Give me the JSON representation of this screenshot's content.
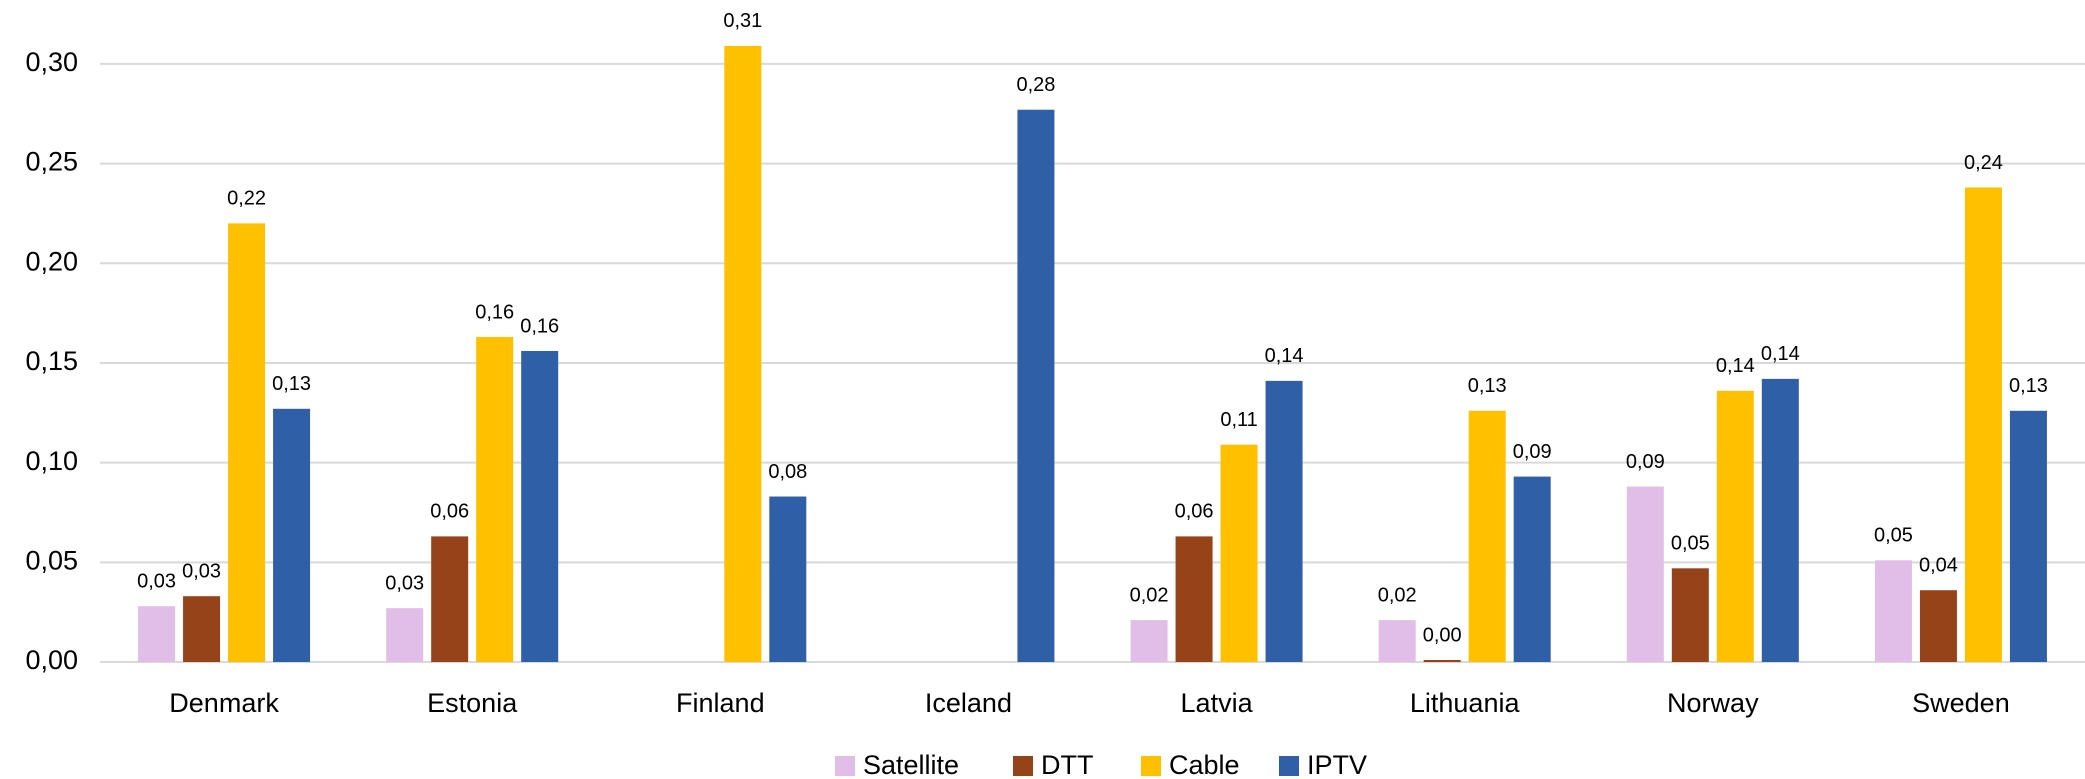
{
  "chart_data": {
    "type": "bar",
    "categories": [
      "Denmark",
      "Estonia",
      "Finland",
      "Iceland",
      "Latvia",
      "Lithuania",
      "Norway",
      "Sweden"
    ],
    "series": [
      {
        "name": "Satellite",
        "color": "#e1bee7",
        "values": [
          0.028,
          0.027,
          null,
          null,
          0.021,
          0.021,
          0.088,
          0.051
        ],
        "value_labels": [
          "0,03",
          "0,03",
          null,
          null,
          "0,02",
          "0,02",
          "0,09",
          "0,05"
        ]
      },
      {
        "name": "DTT",
        "color": "#974319",
        "values": [
          0.033,
          0.063,
          null,
          null,
          0.063,
          0.001,
          0.047,
          0.036
        ],
        "value_labels": [
          "0,03",
          "0,06",
          null,
          null,
          "0,06",
          "0,00",
          "0,05",
          "0,04"
        ]
      },
      {
        "name": "Cable",
        "color": "#ffc000",
        "values": [
          0.22,
          0.163,
          0.309,
          null,
          0.109,
          0.126,
          0.136,
          0.238
        ],
        "value_labels": [
          "0,22",
          "0,16",
          "0,31",
          null,
          "0,11",
          "0,13",
          "0,14",
          "0,24"
        ]
      },
      {
        "name": "IPTV",
        "color": "#2f5fa7",
        "values": [
          0.127,
          0.156,
          0.083,
          0.277,
          0.141,
          0.093,
          0.142,
          0.126
        ],
        "value_labels": [
          "0,13",
          "0,16",
          "0,08",
          "0,28",
          "0,14",
          "0,09",
          "0,14",
          "0,13"
        ]
      }
    ],
    "ylim": [
      0,
      0.32
    ],
    "yticks": [
      {
        "value": 0,
        "label": "0,00"
      },
      {
        "value": 0.05,
        "label": "0,05"
      },
      {
        "value": 0.1,
        "label": "0,10"
      },
      {
        "value": 0.15,
        "label": "0,15"
      },
      {
        "value": 0.2,
        "label": "0,20"
      },
      {
        "value": 0.25,
        "label": "0,25"
      },
      {
        "value": 0.3,
        "label": "0,30"
      }
    ],
    "grid": true,
    "legend": "bottom"
  }
}
